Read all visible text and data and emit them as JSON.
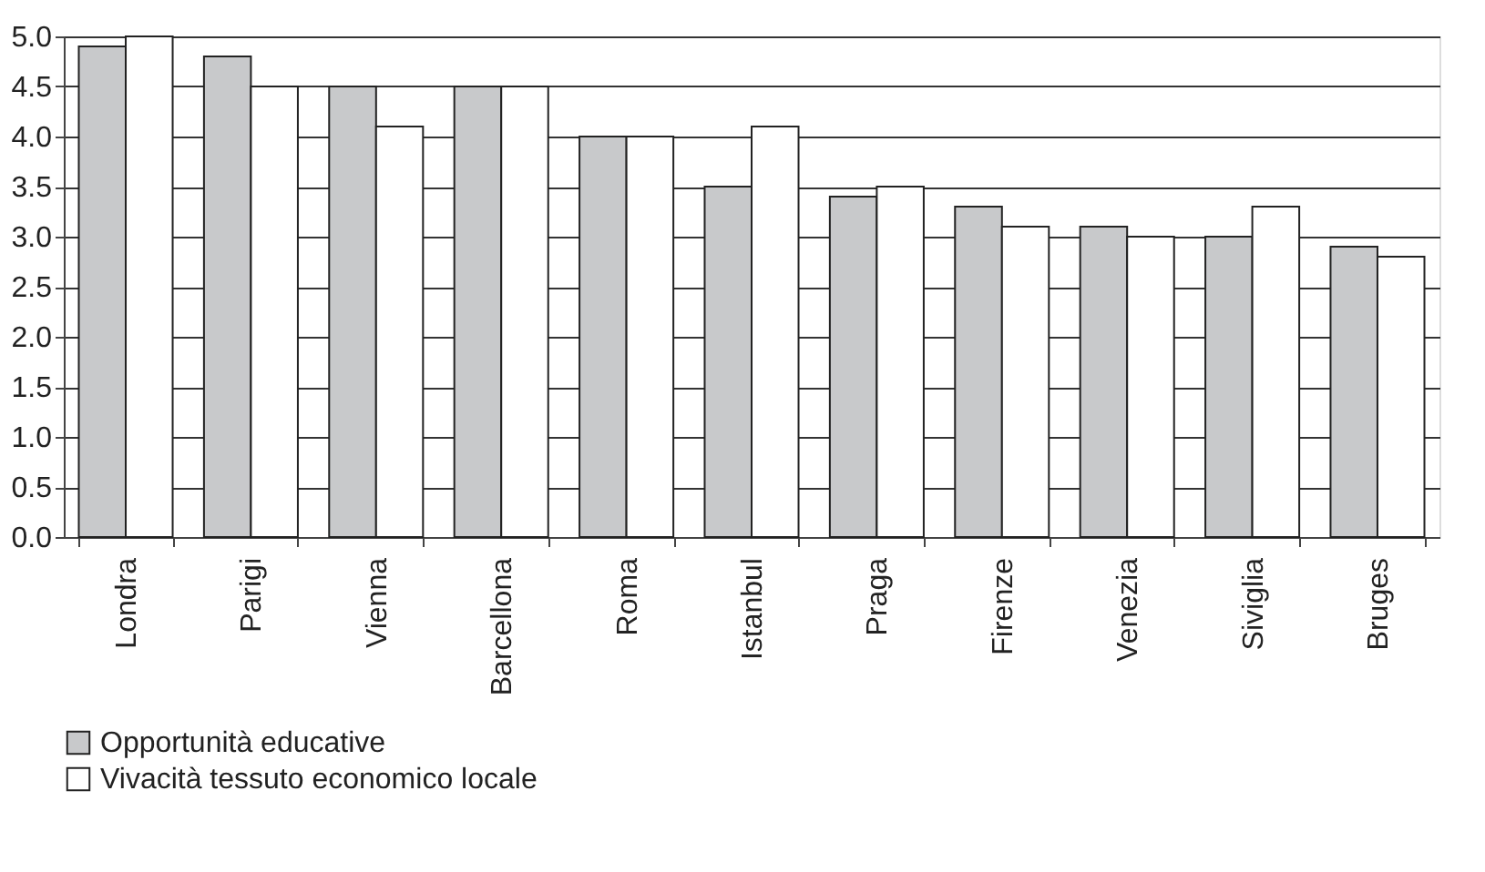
{
  "chart_data": {
    "type": "bar",
    "categories": [
      "Londra",
      "Parigi",
      "Vienna",
      "Barcellona",
      "Roma",
      "Istanbul",
      "Praga",
      "Firenze",
      "Venezia",
      "Siviglia",
      "Bruges"
    ],
    "series": [
      {
        "name": "Opportunità educative",
        "color": "#c8c9cb",
        "values": [
          4.9,
          4.8,
          4.5,
          4.5,
          4.0,
          3.5,
          3.4,
          3.3,
          3.1,
          3.0,
          2.9
        ]
      },
      {
        "name": "Vivacità tessuto economico locale",
        "color": "#ffffff",
        "values": [
          5.0,
          4.5,
          4.1,
          4.5,
          4.0,
          4.1,
          3.5,
          3.1,
          3.0,
          3.3,
          2.8
        ]
      }
    ],
    "ylim": [
      0,
      5
    ],
    "yticks": [
      {
        "value": 0,
        "label": "0.0"
      },
      0.5,
      {
        "value": 1,
        "label": "1.0"
      },
      1.5,
      {
        "value": 2,
        "label": "2.0"
      },
      2.5,
      {
        "value": 3,
        "label": "3.0"
      },
      3.5,
      {
        "value": 4,
        "label": "4.0"
      },
      4.5,
      {
        "value": 5,
        "label": "5.0"
      }
    ],
    "grid": "y",
    "legend": "bottom"
  }
}
